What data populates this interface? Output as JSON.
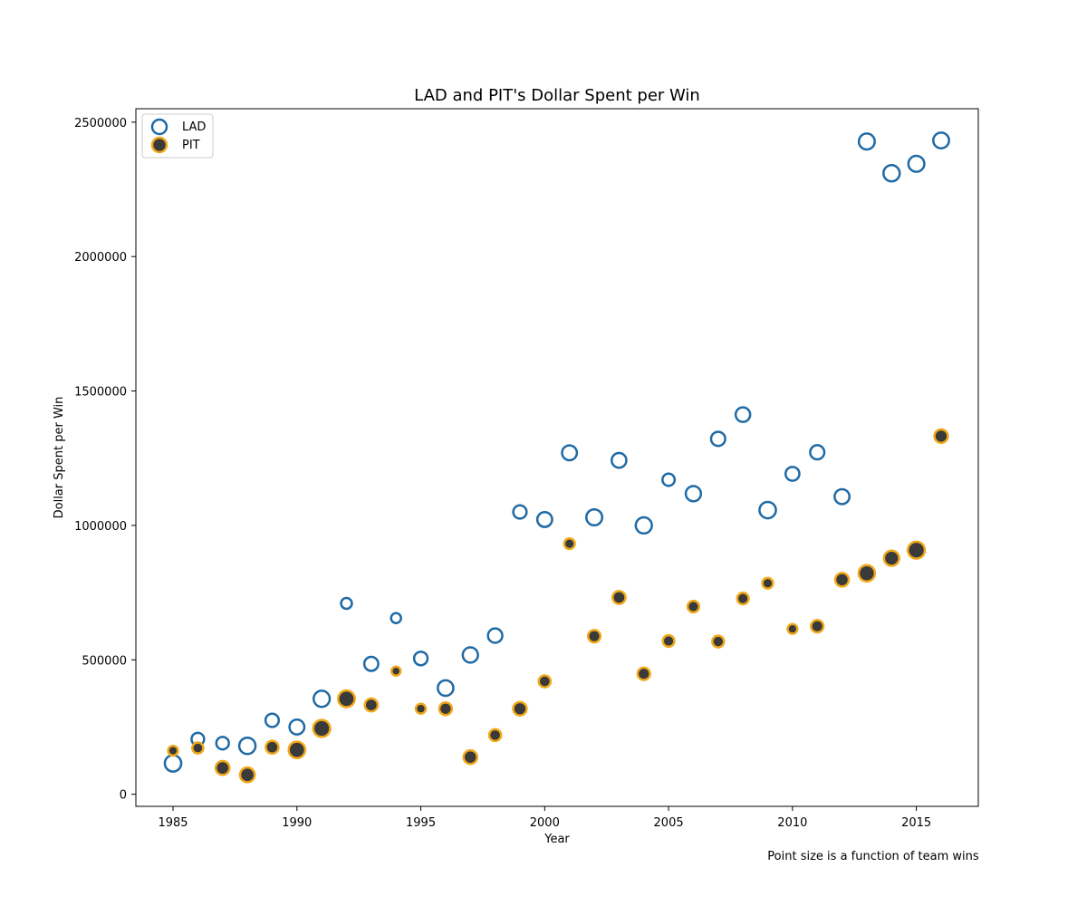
{
  "chart_data": {
    "type": "scatter",
    "title": "LAD and PIT's Dollar Spent per Win",
    "xlabel": "Year",
    "ylabel": "Dollar Spent per Win",
    "caption": "Point size is a function of team wins",
    "xlim": [
      1983.5,
      2017.5
    ],
    "ylim": [
      -45000,
      2550000
    ],
    "xticks": [
      1985,
      1990,
      1995,
      2000,
      2005,
      2010,
      2015
    ],
    "yticks": [
      0,
      500000,
      1000000,
      1500000,
      2000000,
      2500000
    ],
    "grid": false,
    "legend_position": "top-left",
    "series": [
      {
        "name": "LAD",
        "marker": "hollow-circle",
        "edge_color": "#1f6aa5",
        "face_color": "#ffffff",
        "x": [
          1985,
          1986,
          1987,
          1988,
          1989,
          1990,
          1991,
          1992,
          1993,
          1994,
          1995,
          1996,
          1997,
          1998,
          1999,
          2000,
          2001,
          2002,
          2003,
          2004,
          2005,
          2006,
          2007,
          2008,
          2009,
          2010,
          2011,
          2012,
          2013,
          2014,
          2015,
          2016
        ],
        "y": [
          115000,
          205000,
          190000,
          180000,
          275000,
          250000,
          355000,
          710000,
          485000,
          655000,
          505000,
          395000,
          518000,
          590000,
          1050000,
          1022000,
          1270000,
          1030000,
          1242000,
          1000000,
          1170000,
          1118000,
          1322000,
          1412000,
          1057000,
          1192000,
          1272000,
          1107000,
          2428000,
          2310000,
          2345000,
          2432000
        ],
        "wins": [
          95,
          73,
          73,
          94,
          77,
          86,
          93,
          63,
          81,
          58,
          78,
          90,
          88,
          83,
          77,
          86,
          86,
          92,
          85,
          93,
          71,
          88,
          82,
          84,
          95,
          80,
          82,
          86,
          92,
          94,
          92,
          91
        ]
      },
      {
        "name": "PIT",
        "marker": "filled-circle",
        "edge_color": "#f0a818",
        "face_color": "#3a3a3a",
        "x": [
          1985,
          1986,
          1987,
          1988,
          1989,
          1990,
          1991,
          1992,
          1993,
          1994,
          1995,
          1996,
          1997,
          1998,
          1999,
          2000,
          2001,
          2002,
          2003,
          2004,
          2005,
          2006,
          2007,
          2008,
          2009,
          2010,
          2011,
          2012,
          2013,
          2014,
          2015,
          2016
        ],
        "y": [
          162000,
          172000,
          98000,
          72000,
          175000,
          165000,
          245000,
          355000,
          332000,
          458000,
          318000,
          318000,
          138000,
          220000,
          318000,
          420000,
          932000,
          588000,
          732000,
          448000,
          570000,
          698000,
          568000,
          728000,
          785000,
          615000,
          625000,
          798000,
          822000,
          878000,
          908000,
          1332000
        ],
        "wins": [
          57,
          64,
          80,
          85,
          74,
          95,
          98,
          96,
          75,
          53,
          58,
          73,
          79,
          69,
          78,
          69,
          62,
          72,
          75,
          72,
          67,
          67,
          68,
          67,
          62,
          57,
          72,
          79,
          94,
          88,
          98,
          78
        ]
      }
    ]
  }
}
